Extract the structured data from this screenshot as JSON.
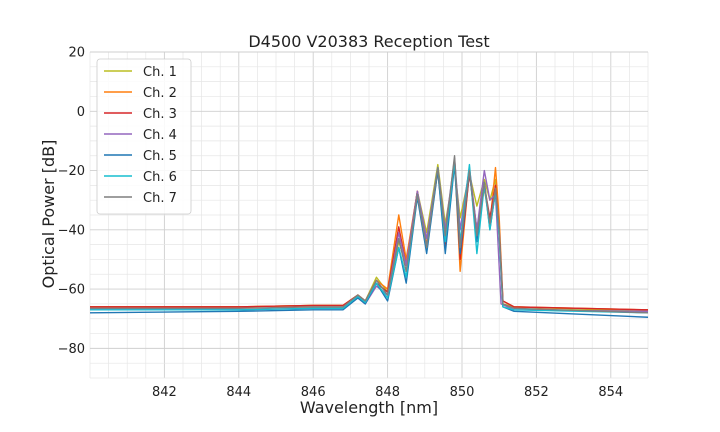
{
  "chart_data": {
    "type": "line",
    "title": "D4500 V20383 Reception Test",
    "xlabel": "Wavelength [nm]",
    "ylabel": "Optical Power [dB]",
    "xlim": [
      840,
      855
    ],
    "ylim": [
      -90,
      20
    ],
    "xticks": [
      842,
      844,
      846,
      848,
      850,
      852,
      854
    ],
    "xtick_labels": [
      "842",
      "844",
      "846",
      "848",
      "850",
      "852",
      "854"
    ],
    "yticks": [
      -80,
      -60,
      -40,
      -20,
      0,
      20
    ],
    "ytick_labels": [
      "−80",
      "−60",
      "−40",
      "−20",
      "0",
      "20"
    ],
    "grid": true,
    "legend_position": "top-left",
    "series": [
      {
        "name": "Ch. 1",
        "color": "#bcbd22",
        "points": [
          [
            840,
            -66
          ],
          [
            844,
            -66
          ],
          [
            846,
            -65.5
          ],
          [
            846.8,
            -65.5
          ],
          [
            847.2,
            -62
          ],
          [
            847.4,
            -64
          ],
          [
            847.7,
            -56
          ],
          [
            848.0,
            -61
          ],
          [
            848.3,
            -44
          ],
          [
            848.5,
            -52
          ],
          [
            848.8,
            -27
          ],
          [
            849.05,
            -41
          ],
          [
            849.35,
            -18
          ],
          [
            849.55,
            -38
          ],
          [
            849.8,
            -19
          ],
          [
            849.95,
            -36
          ],
          [
            850.2,
            -21
          ],
          [
            850.4,
            -32
          ],
          [
            850.6,
            -23
          ],
          [
            850.75,
            -30
          ],
          [
            850.9,
            -23
          ],
          [
            851.0,
            -42
          ],
          [
            851.1,
            -65
          ],
          [
            851.4,
            -66
          ],
          [
            855,
            -67.5
          ]
        ]
      },
      {
        "name": "Ch. 2",
        "color": "#ff7f0e",
        "points": [
          [
            840,
            -66
          ],
          [
            844,
            -66
          ],
          [
            846,
            -65.5
          ],
          [
            846.8,
            -65.5
          ],
          [
            847.2,
            -62
          ],
          [
            847.4,
            -64
          ],
          [
            847.7,
            -57
          ],
          [
            848.0,
            -60
          ],
          [
            848.3,
            -35
          ],
          [
            848.5,
            -50
          ],
          [
            848.8,
            -27
          ],
          [
            849.05,
            -45
          ],
          [
            849.35,
            -20
          ],
          [
            849.55,
            -45
          ],
          [
            849.8,
            -16
          ],
          [
            849.95,
            -54
          ],
          [
            850.2,
            -20
          ],
          [
            850.4,
            -40
          ],
          [
            850.6,
            -26
          ],
          [
            850.75,
            -38
          ],
          [
            850.9,
            -19
          ],
          [
            851.0,
            -36
          ],
          [
            851.1,
            -64
          ],
          [
            851.4,
            -66
          ],
          [
            855,
            -67
          ]
        ]
      },
      {
        "name": "Ch. 3",
        "color": "#d62728",
        "points": [
          [
            840,
            -66
          ],
          [
            844,
            -66
          ],
          [
            846,
            -65.5
          ],
          [
            846.8,
            -65.5
          ],
          [
            847.2,
            -62
          ],
          [
            847.4,
            -64
          ],
          [
            847.7,
            -58
          ],
          [
            848.0,
            -61
          ],
          [
            848.3,
            -39
          ],
          [
            848.5,
            -52
          ],
          [
            848.8,
            -27
          ],
          [
            849.05,
            -46
          ],
          [
            849.35,
            -20
          ],
          [
            849.55,
            -46
          ],
          [
            849.8,
            -16
          ],
          [
            849.95,
            -50
          ],
          [
            850.2,
            -21
          ],
          [
            850.4,
            -40
          ],
          [
            850.6,
            -25
          ],
          [
            850.75,
            -36
          ],
          [
            850.9,
            -25
          ],
          [
            851.0,
            -40
          ],
          [
            851.1,
            -64
          ],
          [
            851.4,
            -66
          ],
          [
            855,
            -67
          ]
        ]
      },
      {
        "name": "Ch. 4",
        "color": "#9467bd",
        "points": [
          [
            840,
            -67
          ],
          [
            844,
            -67
          ],
          [
            846,
            -66.5
          ],
          [
            846.8,
            -66.5
          ],
          [
            847.2,
            -63
          ],
          [
            847.4,
            -65
          ],
          [
            847.7,
            -59
          ],
          [
            848.0,
            -62
          ],
          [
            848.3,
            -41
          ],
          [
            848.5,
            -52
          ],
          [
            848.8,
            -27
          ],
          [
            849.05,
            -43
          ],
          [
            849.35,
            -19
          ],
          [
            849.55,
            -40
          ],
          [
            849.8,
            -16
          ],
          [
            849.95,
            -40
          ],
          [
            850.2,
            -19
          ],
          [
            850.4,
            -40
          ],
          [
            850.6,
            -20
          ],
          [
            850.75,
            -30
          ],
          [
            850.9,
            -28
          ],
          [
            850.95,
            -40
          ],
          [
            851.05,
            -65
          ],
          [
            851.4,
            -67
          ],
          [
            855,
            -67.5
          ]
        ]
      },
      {
        "name": "Ch. 5",
        "color": "#1f77b4",
        "points": [
          [
            840,
            -68
          ],
          [
            844,
            -67.5
          ],
          [
            846,
            -67
          ],
          [
            846.8,
            -67
          ],
          [
            847.2,
            -63
          ],
          [
            847.4,
            -65
          ],
          [
            847.7,
            -58
          ],
          [
            848.0,
            -64
          ],
          [
            848.3,
            -46
          ],
          [
            848.5,
            -58
          ],
          [
            848.8,
            -29
          ],
          [
            849.05,
            -48
          ],
          [
            849.35,
            -20
          ],
          [
            849.55,
            -48
          ],
          [
            849.8,
            -18
          ],
          [
            849.95,
            -48
          ],
          [
            850.2,
            -20
          ],
          [
            850.4,
            -44
          ],
          [
            850.6,
            -24
          ],
          [
            850.75,
            -40
          ],
          [
            850.9,
            -27
          ],
          [
            851.0,
            -42
          ],
          [
            851.1,
            -66
          ],
          [
            851.4,
            -67.5
          ],
          [
            855,
            -69.5
          ]
        ]
      },
      {
        "name": "Ch. 6",
        "color": "#17becf",
        "points": [
          [
            840,
            -67
          ],
          [
            844,
            -67
          ],
          [
            846,
            -66.5
          ],
          [
            846.8,
            -66.5
          ],
          [
            847.2,
            -62.5
          ],
          [
            847.4,
            -64.5
          ],
          [
            847.7,
            -58
          ],
          [
            848.0,
            -63
          ],
          [
            848.3,
            -46
          ],
          [
            848.5,
            -56
          ],
          [
            848.8,
            -28
          ],
          [
            849.05,
            -46
          ],
          [
            849.35,
            -19
          ],
          [
            849.55,
            -44
          ],
          [
            849.8,
            -17
          ],
          [
            849.95,
            -44
          ],
          [
            850.2,
            -18
          ],
          [
            850.4,
            -48
          ],
          [
            850.6,
            -25
          ],
          [
            850.75,
            -40
          ],
          [
            850.9,
            -27
          ],
          [
            851.0,
            -42
          ],
          [
            851.1,
            -66
          ],
          [
            851.4,
            -67
          ],
          [
            855,
            -68
          ]
        ]
      },
      {
        "name": "Ch. 7",
        "color": "#7f7f7f",
        "points": [
          [
            840,
            -66.5
          ],
          [
            844,
            -66.5
          ],
          [
            846,
            -66
          ],
          [
            846.8,
            -66
          ],
          [
            847.2,
            -62
          ],
          [
            847.4,
            -64
          ],
          [
            847.7,
            -57
          ],
          [
            848.0,
            -62
          ],
          [
            848.3,
            -43
          ],
          [
            848.5,
            -54
          ],
          [
            848.8,
            -28
          ],
          [
            849.05,
            -46
          ],
          [
            849.35,
            -19
          ],
          [
            849.55,
            -42
          ],
          [
            849.8,
            -15
          ],
          [
            849.95,
            -46
          ],
          [
            850.2,
            -20
          ],
          [
            850.4,
            -42
          ],
          [
            850.6,
            -24
          ],
          [
            850.75,
            -38
          ],
          [
            850.9,
            -26
          ],
          [
            851.0,
            -40
          ],
          [
            851.1,
            -65
          ],
          [
            851.4,
            -66.5
          ],
          [
            855,
            -68
          ]
        ]
      }
    ]
  }
}
